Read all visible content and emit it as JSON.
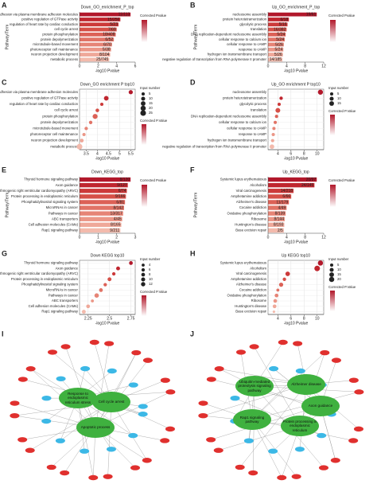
{
  "chart_data": [
    {
      "type": "bar",
      "panel": "A",
      "title": "Down_GO_enrichment_P_top",
      "x_label": "-log10 Pvalue",
      "y_label": "Pathway/Term",
      "legend_title": "Corrected Pvalue",
      "categories": [
        "homophilic cell adhesion via plasma membrane adhesion molecules",
        "positive regulation of GTPase activity",
        "regulation of heart rate by cardiac conduction",
        "cell cycle arrest",
        "protein phosphorylation",
        "protein depolymerization",
        "microtubule-based movement",
        "photoreceptor cell maintenance",
        "neuron projection development",
        "metabolic process"
      ],
      "values": [
        5.5,
        4.4,
        4.2,
        4.0,
        3.9,
        3.7,
        3.5,
        3.4,
        3.3,
        3.2
      ],
      "gene_ratios": [
        "11/113",
        "15/256",
        "5/23",
        "7/69",
        "18/408",
        "6/52",
        "6/70",
        "5/38",
        "8/104",
        "25/745"
      ],
      "colors": [
        "#b2182b",
        "#c0262f",
        "#cc3a3a",
        "#d64f47",
        "#dc6157",
        "#e17366",
        "#e68476",
        "#eb9687",
        "#efa899",
        "#f3baac"
      ],
      "xlim": [
        0,
        6
      ],
      "xticks": [
        0,
        2,
        4,
        6
      ]
    },
    {
      "type": "bar",
      "panel": "B",
      "title": "Up_GO_enrichment_P_top",
      "x_label": "-log10 Pvalue",
      "y_label": "Pathway/Term",
      "legend_title": "Corrected Pvalue",
      "categories": [
        "nucleosome assembly",
        "protein heterotetramerization",
        "glycolytic process",
        "translation",
        "DNA replication-dependent nucleosome assembly",
        "cellular response to calcium ion",
        "cellular response to cAMP",
        "response to cAMP",
        "hydrogen ion transmembrane transport",
        "negative regulation of transcription from RNA polymerase II promoter"
      ],
      "values": [
        10.5,
        4.5,
        4.2,
        4.0,
        3.8,
        3.6,
        3.4,
        3.3,
        3.2,
        3.1
      ],
      "gene_ratios": [
        "19/61",
        "6/18",
        "5/16",
        "16/382",
        "5/24",
        "5/24",
        "5/26",
        "5/24",
        "5/26",
        "14/185"
      ],
      "colors": [
        "#b2182b",
        "#c0262f",
        "#cc3a3a",
        "#d64f47",
        "#dc6157",
        "#e17366",
        "#e68476",
        "#eb9687",
        "#efa899",
        "#f3baac"
      ],
      "xlim": [
        0,
        12
      ],
      "xticks": [
        0,
        4,
        8,
        12
      ]
    },
    {
      "type": "dot",
      "panel": "C",
      "title": "Down_GO enrichment P top10",
      "x_label": "-log10 Pvalue",
      "size_title": "Input number",
      "color_title": "Corrected P.Value",
      "size_legend": [
        5,
        10,
        15,
        20,
        25
      ],
      "categories": [
        "homophilic cell adhesion via plasma membrane adhesion molecules",
        "positive regulation of GTPase activity",
        "regulation of heart rate by cardiac conduction",
        "cell cycle arrest",
        "protein phosphorylation",
        "protein depolymerization",
        "microtubule-based movement",
        "photoreceptor cell maintenance",
        "neuron projection development",
        "metabolic process"
      ],
      "values": [
        5.5,
        4.4,
        4.2,
        4.0,
        3.9,
        3.7,
        3.5,
        3.4,
        3.3,
        3.2
      ],
      "sizes": [
        11,
        15,
        5,
        7,
        18,
        6,
        6,
        5,
        8,
        25
      ],
      "colors": [
        "#b2182b",
        "#c0262f",
        "#cc3a3a",
        "#d64f47",
        "#dc6157",
        "#e17366",
        "#e68476",
        "#eb9687",
        "#efa899",
        "#f3baac"
      ],
      "xlim": [
        3.2,
        5.7
      ],
      "xticks": [
        3.5,
        4.0,
        4.5,
        5.0,
        5.5
      ]
    },
    {
      "type": "dot",
      "panel": "D",
      "title": "Up_GO enrichment P top10",
      "x_label": "-log10 Pvalue",
      "size_title": "Input number",
      "color_title": "Corrected P.Value",
      "size_legend": [
        5,
        10,
        15
      ],
      "categories": [
        "nucleosome assembly",
        "protein heterotetramerization",
        "glycolytic process",
        "translation",
        "DNA replication-dependent nucleosome assembly",
        "cellular response to calcium ion",
        "cellular response to cAMP",
        "response to cAMP",
        "hydrogen ion transmembrane transport",
        "negative regulation of transcription from RNA polymerase II promoter"
      ],
      "values": [
        10.5,
        4.5,
        4.2,
        4.0,
        3.8,
        3.6,
        3.4,
        3.3,
        3.2,
        3.1
      ],
      "sizes": [
        19,
        6,
        5,
        16,
        5,
        5,
        5,
        5,
        5,
        14
      ],
      "colors": [
        "#b2182b",
        "#c0262f",
        "#cc3a3a",
        "#d64f47",
        "#dc6157",
        "#e17366",
        "#e68476",
        "#eb9687",
        "#efa899",
        "#f3baac"
      ],
      "xlim": [
        2.5,
        11
      ],
      "xticks": [
        4,
        6,
        8,
        10
      ]
    },
    {
      "type": "bar",
      "panel": "E",
      "title": "Down_KEGG_top",
      "x_label": "-log10 Pvalue",
      "y_label": "Pathway/Term",
      "legend_title": "Corrected Pvalue",
      "categories": [
        "Thyroid hormone signaling pathway",
        "Axon guidance",
        "Arrhythmogenic right ventricular cardiomyopathy (ARVC)",
        "Protein processing in endoplasmic reticulum",
        "Phosphatidylinositol signaling system",
        "MicroRNAs in cancer",
        "Pathways in cancer",
        "ABC transporters",
        "Cell adhesion molecules (CAMs)",
        "Rap1 signaling pathway"
      ],
      "values": [
        2.75,
        2.6,
        2.55,
        2.5,
        2.45,
        2.4,
        2.35,
        2.3,
        2.25,
        2.2
      ],
      "gene_ratios": [
        "8/120",
        "9/127",
        "6/74",
        "9/166",
        "6/81",
        "8/142",
        "13/317",
        "4/45",
        "8/165",
        "9/211"
      ],
      "colors": [
        "#b2182b",
        "#c0262f",
        "#cc3a3a",
        "#d64f47",
        "#dc6157",
        "#e17366",
        "#e68476",
        "#eb9687",
        "#efa899",
        "#f3baac"
      ],
      "xlim": [
        0,
        3
      ],
      "xticks": [
        0,
        1,
        2,
        3
      ]
    },
    {
      "type": "bar",
      "panel": "F",
      "title": "Up_KEGG_top",
      "x_label": "-log10 Pvalue",
      "y_label": "Pathway/Term",
      "legend_title": "Corrected Pvalue",
      "categories": [
        "Systemic lupus erythematosus",
        "Alcoholism",
        "Viral carcinogenesis",
        "Amphetamine addiction",
        "Alzheimer's disease",
        "Cocaine addiction",
        "Oxidative phosphorylation",
        "Ribosome",
        "Huntington's disease",
        "Base excision repair"
      ],
      "values": [
        10.5,
        10,
        5.5,
        5,
        4.5,
        4,
        3.8,
        3.6,
        3.5,
        3.4
      ],
      "gene_ratios": [
        "20/97",
        "24/145",
        "14/218",
        "6/66",
        "11/179",
        "4/49",
        "8/139",
        "8/144",
        "8/193",
        "2/5"
      ],
      "colors": [
        "#b2182b",
        "#c0262f",
        "#cc3a3a",
        "#d64f47",
        "#dc6157",
        "#e17366",
        "#e68476",
        "#eb9687",
        "#efa899",
        "#f3baac"
      ],
      "xlim": [
        0,
        12
      ],
      "xticks": [
        0,
        4,
        8,
        12
      ]
    },
    {
      "type": "dot",
      "panel": "G",
      "title": "Down KEGG top10",
      "x_label": "-log10 Pvalue",
      "size_title": "Input number",
      "color_title": "Corrected P.Value",
      "size_legend": [
        4,
        6,
        8,
        10,
        12
      ],
      "categories": [
        "Thyroid hormone signaling pathway",
        "Axon guidance",
        "Arrhythmogenic right ventricular cardiomyopathy (ARVC)",
        "Protein processing in endoplasmic reticulum",
        "Phosphatidylinositol signaling system",
        "MicroRNAs in cancer",
        "Pathways in cancer",
        "ABC transporters",
        "Cell adhesion molecules (CAMs)",
        "Rap1 signaling pathway"
      ],
      "values": [
        2.75,
        2.6,
        2.55,
        2.5,
        2.45,
        2.4,
        2.35,
        2.3,
        2.25,
        2.2
      ],
      "sizes": [
        8,
        9,
        6,
        9,
        6,
        8,
        13,
        4,
        8,
        9
      ],
      "colors": [
        "#b2182b",
        "#c0262f",
        "#cc3a3a",
        "#d64f47",
        "#dc6157",
        "#e17366",
        "#e68476",
        "#eb9687",
        "#efa899",
        "#f3baac"
      ],
      "xlim": [
        2.15,
        2.8
      ],
      "xticks": [
        2.25,
        2.5,
        2.75
      ]
    },
    {
      "type": "dot",
      "panel": "H",
      "title": "Up KEGG top10",
      "x_label": "-log10 Pvalue",
      "size_title": "Input number",
      "color_title": "Corrected P.Value",
      "size_legend": [
        5,
        10,
        15,
        20
      ],
      "categories": [
        "Systemic lupus erythematosus",
        "Alcoholism",
        "Viral carcinogenesis",
        "Amphetamine addiction",
        "Alzheimer's disease",
        "Cocaine addiction",
        "Oxidative phosphorylation",
        "Ribosome",
        "Huntington's disease",
        "Base excision repair"
      ],
      "values": [
        10.5,
        10,
        5.5,
        5,
        4.5,
        4,
        3.8,
        3.6,
        3.5,
        3.4
      ],
      "sizes": [
        20,
        24,
        14,
        6,
        11,
        4,
        8,
        8,
        8,
        2
      ],
      "colors": [
        "#b2182b",
        "#c0262f",
        "#cc3a3a",
        "#d64f47",
        "#dc6157",
        "#e17366",
        "#e68476",
        "#eb9687",
        "#efa899",
        "#f3baac"
      ],
      "xlim": [
        2.5,
        11
      ],
      "xticks": [
        4,
        6,
        8,
        10
      ]
    }
  ],
  "networks": [
    {
      "panel": "I",
      "hubs": [
        "Response to endoplasmic reticulum stress",
        "Cell cycle arrest",
        "Apoptotic process"
      ]
    },
    {
      "panel": "J",
      "hubs": [
        "Ubiquitin-mediated proteolysis signaling pathway",
        "Alzheimer disease",
        "Rap1 signaling pathway",
        "Protein processing in endoplasmic reticulum",
        "Axon guidance"
      ]
    }
  ]
}
